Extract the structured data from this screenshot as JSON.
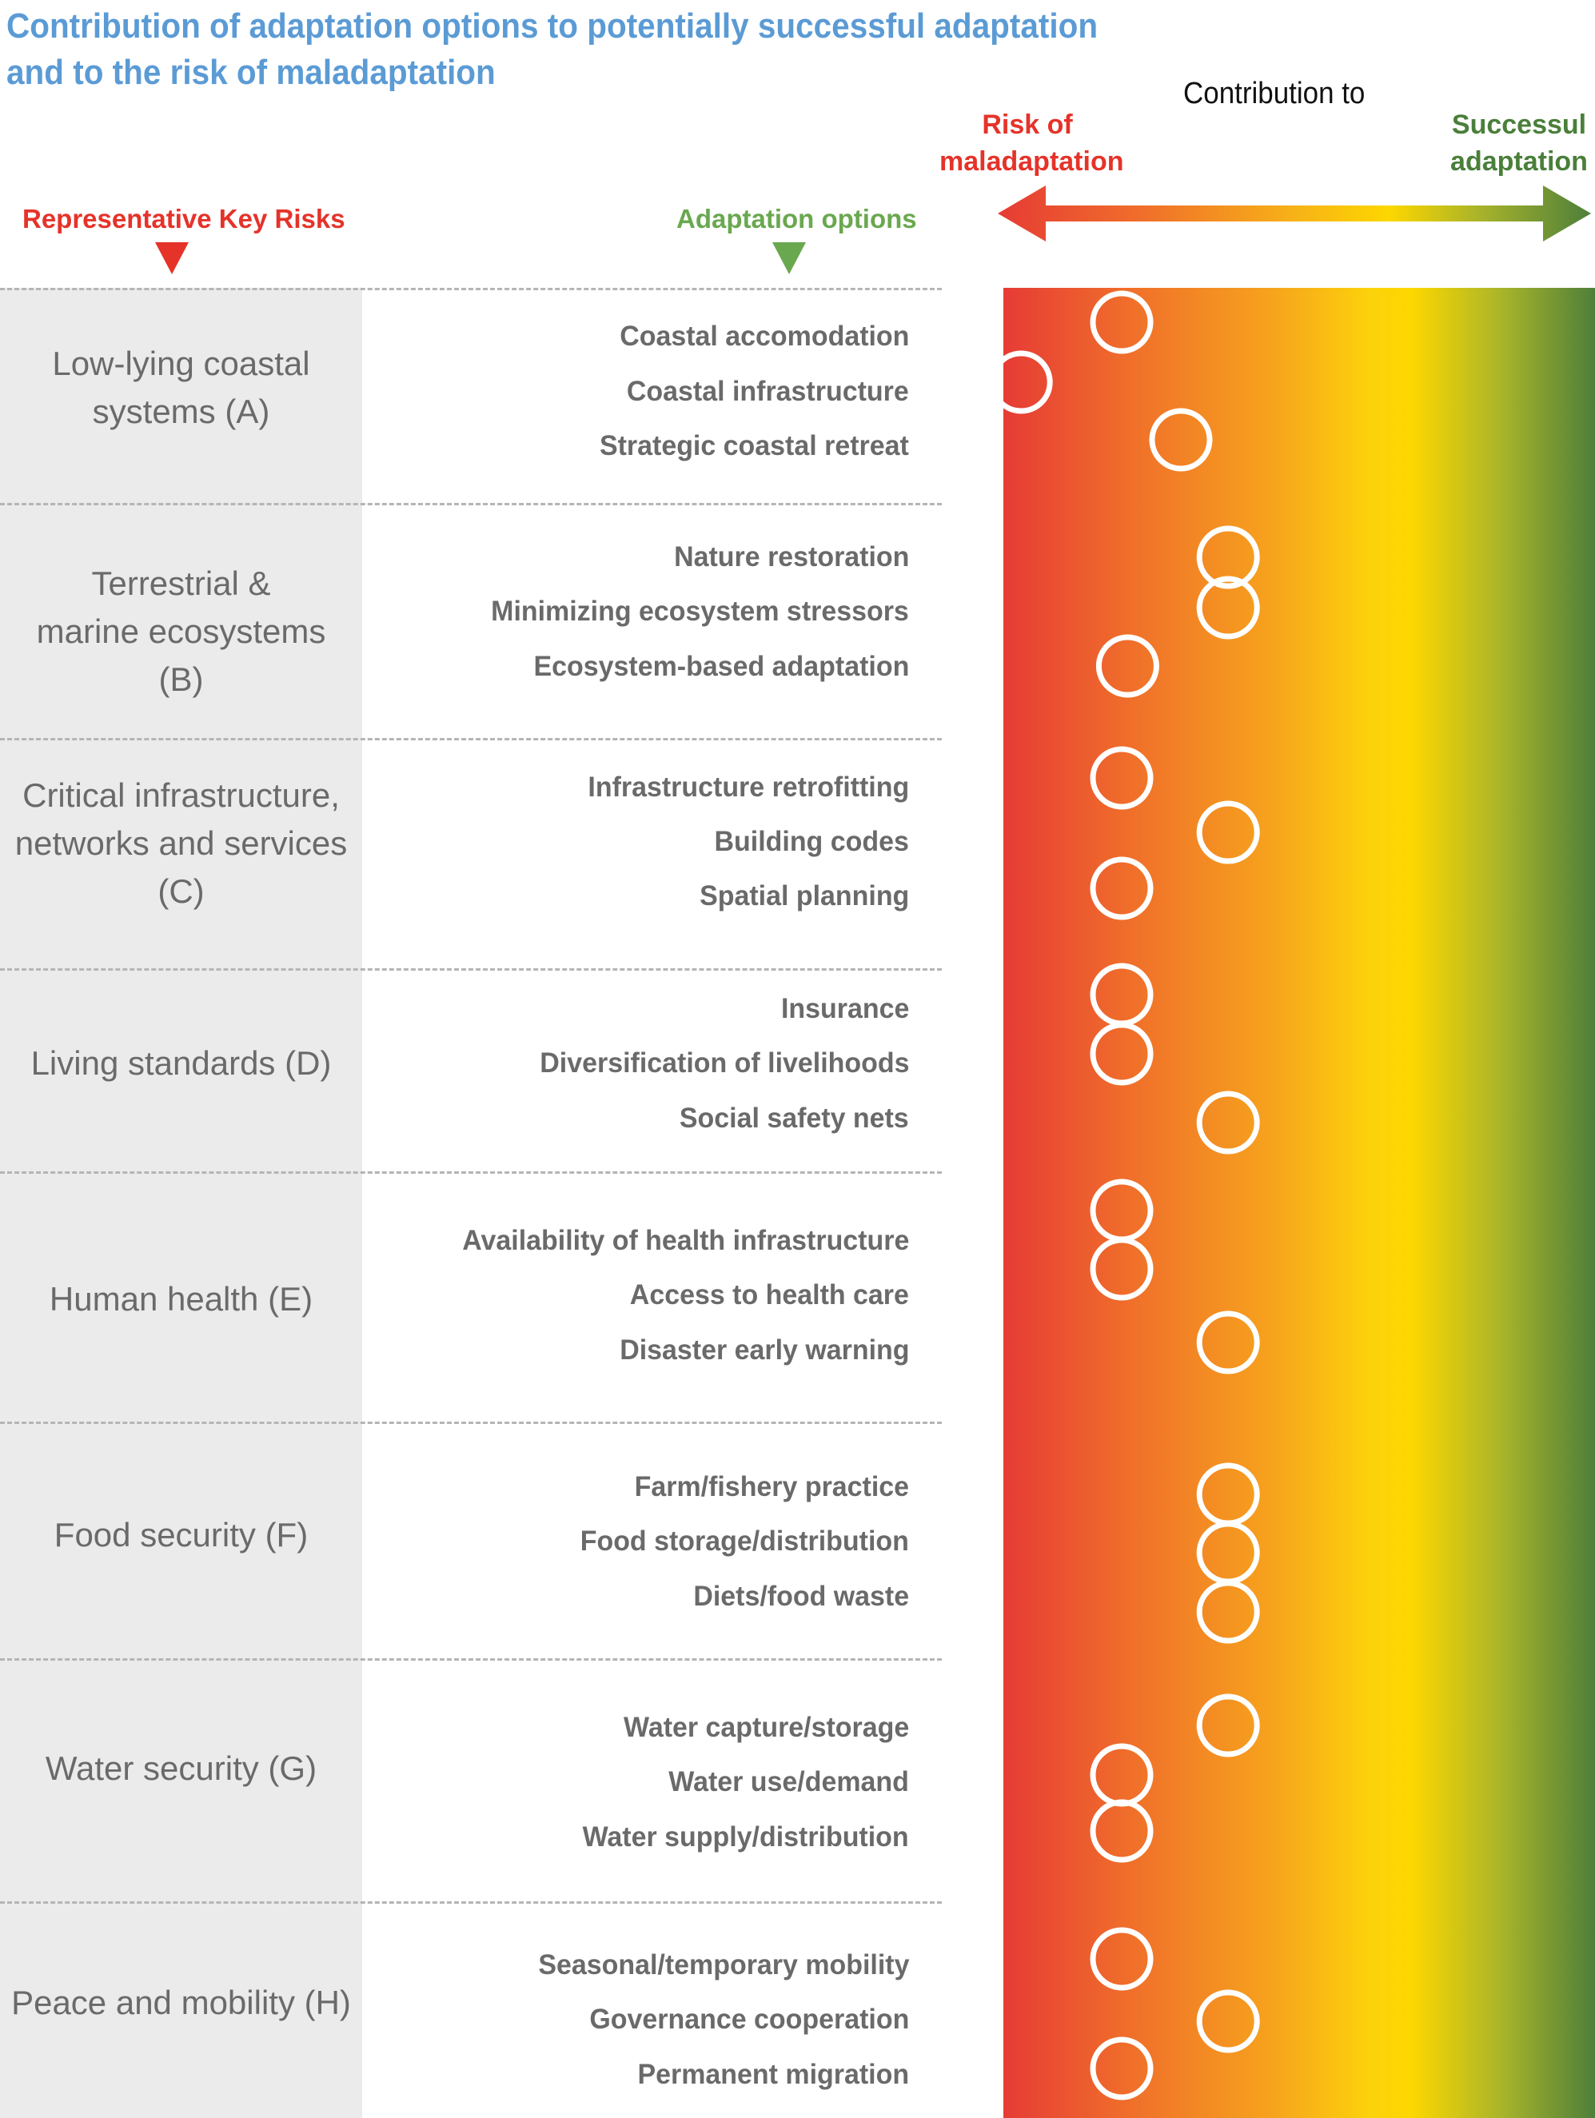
{
  "title_line1": "Contribution of adaptation options to potentially successful adaptation",
  "title_line2": "and to the risk of maladaptation",
  "header": {
    "contribution_to": "Contribution to",
    "risk_line1": "Risk of",
    "risk_line2": "maladaptation",
    "success_line1": "Successul",
    "success_line2": "adaptation",
    "col_rkr": "Representative Key Risks",
    "col_options": "Adaptation options"
  },
  "colors": {
    "title": "#5b9bd5",
    "risk": "#e5332a",
    "success": "#4a7f3a",
    "options_header": "#6aa84f",
    "gradient": [
      "#e63b35",
      "#f0702a",
      "#f6a21d",
      "#fdd700",
      "#aab52a",
      "#4e7f3a"
    ]
  },
  "groups": [
    {
      "label_lines": [
        "Low-lying coastal",
        "systems (A)"
      ],
      "options": [
        "Coastal accomodation",
        "Coastal infrastructure",
        "Strategic coastal retreat"
      ]
    },
    {
      "label_lines": [
        "Terrestrial &",
        "marine ecosystems",
        "(B)"
      ],
      "options": [
        "Nature restoration",
        "Minimizing ecosystem stressors",
        "Ecosystem-based adaptation"
      ]
    },
    {
      "label_lines": [
        "Critical infrastructure,",
        "networks and services",
        "(C)"
      ],
      "options": [
        "Infrastructure retrofitting",
        "Building codes",
        "Spatial planning"
      ]
    },
    {
      "label_lines": [
        "Living standards (D)"
      ],
      "options": [
        "Insurance",
        "Diversification of livelihoods",
        "Social safety nets"
      ]
    },
    {
      "label_lines": [
        "Human health (E)"
      ],
      "options": [
        "Availability of health infrastructure",
        "Access to health care",
        "Disaster early warning"
      ]
    },
    {
      "label_lines": [
        "Food security (F)"
      ],
      "options": [
        "Farm/fishery practice",
        "Food storage/distribution",
        "Diets/food waste"
      ]
    },
    {
      "label_lines": [
        "Water security (G)"
      ],
      "options": [
        "Water capture/storage",
        "Water use/demand",
        "Water supply/distribution"
      ]
    },
    {
      "label_lines": [
        "Peace and mobility (H)"
      ],
      "options": [
        "Seasonal/temporary mobility",
        "Governance cooperation",
        "Permanent migration"
      ]
    }
  ],
  "chart_data": {
    "type": "scatter",
    "x_axis": "Contribution to",
    "x_range_labels": [
      "Risk of maladaptation",
      "Successul adaptation"
    ],
    "x_scale": "relative position 0 (risk of maladaptation) to 1 (successful adaptation)",
    "points": [
      {
        "option": "Coastal accomodation",
        "value": 0.2
      },
      {
        "option": "Coastal infrastructure",
        "value": 0.03
      },
      {
        "option": "Strategic coastal retreat",
        "value": 0.3
      },
      {
        "option": "Nature restoration",
        "value": 0.38
      },
      {
        "option": "Minimizing ecosystem stressors",
        "value": 0.38
      },
      {
        "option": "Ecosystem-based adaptation",
        "value": 0.21
      },
      {
        "option": "Infrastructure retrofitting",
        "value": 0.2
      },
      {
        "option": "Building codes",
        "value": 0.38
      },
      {
        "option": "Spatial planning",
        "value": 0.2
      },
      {
        "option": "Insurance",
        "value": 0.2
      },
      {
        "option": "Diversification of livelihoods",
        "value": 0.2
      },
      {
        "option": "Social safety nets",
        "value": 0.38
      },
      {
        "option": "Availability of health infrastructure",
        "value": 0.2
      },
      {
        "option": "Access to health care",
        "value": 0.2
      },
      {
        "option": "Disaster early warning",
        "value": 0.38
      },
      {
        "option": "Farm/fishery practice",
        "value": 0.38
      },
      {
        "option": "Food storage/distribution",
        "value": 0.38
      },
      {
        "option": "Diets/food waste",
        "value": 0.38
      },
      {
        "option": "Water capture/storage",
        "value": 0.38
      },
      {
        "option": "Water use/demand",
        "value": 0.2
      },
      {
        "option": "Water supply/distribution",
        "value": 0.2
      },
      {
        "option": "Seasonal/temporary mobility",
        "value": 0.2
      },
      {
        "option": "Governance cooperation",
        "value": 0.38
      },
      {
        "option": "Permanent migration",
        "value": 0.2
      }
    ]
  }
}
